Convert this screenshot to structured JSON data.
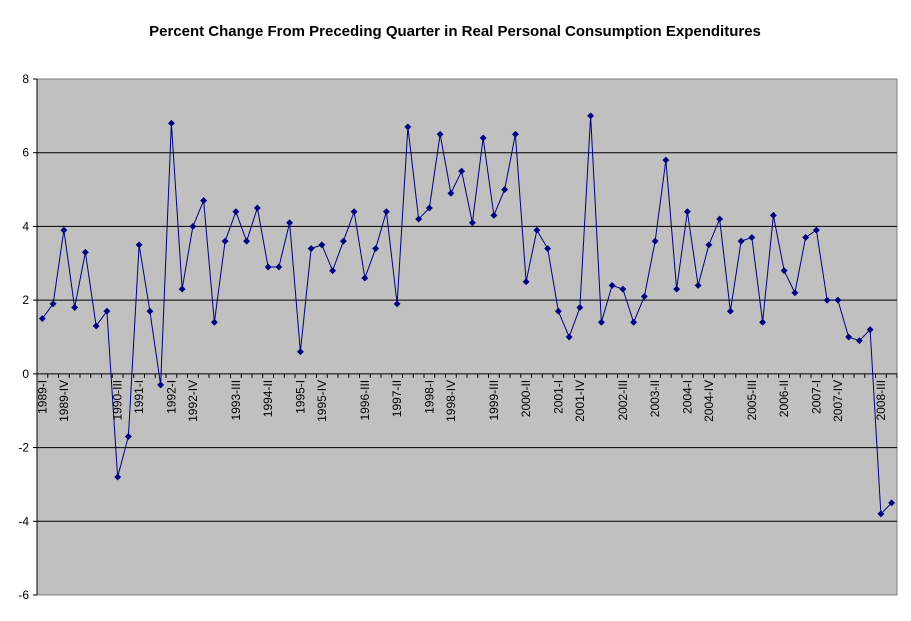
{
  "chart_data": {
    "type": "line",
    "title": "Percent Change From Preceding Quarter in Real Personal Consumption Expenditures",
    "xlabel": "",
    "ylabel": "",
    "ylim": [
      -6,
      8
    ],
    "yticks": [
      -6,
      -4,
      -2,
      0,
      2,
      4,
      6,
      8
    ],
    "grid": true,
    "legend": "none",
    "colors": {
      "line": "#000080",
      "marker": "#000080",
      "plot_bg": "#C0C0C0",
      "grid": "#000000"
    },
    "x_tick_labels": [
      {
        "index": 0,
        "label": "1989-I"
      },
      {
        "index": 2,
        "label": "1989-IV"
      },
      {
        "index": 7,
        "label": "1990-III"
      },
      {
        "index": 9,
        "label": "1991-I"
      },
      {
        "index": 12,
        "label": "1992-I"
      },
      {
        "index": 14,
        "label": "1992-IV"
      },
      {
        "index": 18,
        "label": "1993-III"
      },
      {
        "index": 21,
        "label": "1994-II"
      },
      {
        "index": 24,
        "label": "1995-I"
      },
      {
        "index": 26,
        "label": "1995-IV"
      },
      {
        "index": 30,
        "label": "1996-III"
      },
      {
        "index": 33,
        "label": "1997-II"
      },
      {
        "index": 36,
        "label": "1998-I"
      },
      {
        "index": 38,
        "label": "1998-IV"
      },
      {
        "index": 42,
        "label": "1999-III"
      },
      {
        "index": 45,
        "label": "2000-II"
      },
      {
        "index": 48,
        "label": "2001-I"
      },
      {
        "index": 50,
        "label": "2001-IV"
      },
      {
        "index": 54,
        "label": "2002-III"
      },
      {
        "index": 57,
        "label": "2003-II"
      },
      {
        "index": 60,
        "label": "2004-I"
      },
      {
        "index": 62,
        "label": "2004-IV"
      },
      {
        "index": 66,
        "label": "2005-III"
      },
      {
        "index": 69,
        "label": "2006-II"
      },
      {
        "index": 72,
        "label": "2007-I"
      },
      {
        "index": 74,
        "label": "2007-IV"
      },
      {
        "index": 78,
        "label": "2008-III"
      }
    ],
    "series": [
      {
        "name": "Percent Change",
        "values": [
          1.5,
          1.9,
          3.9,
          1.8,
          3.3,
          1.3,
          1.7,
          -2.8,
          -1.7,
          3.5,
          1.7,
          -0.3,
          6.8,
          2.3,
          4.0,
          4.7,
          1.4,
          3.6,
          4.4,
          3.6,
          4.5,
          2.9,
          2.9,
          4.1,
          0.6,
          3.4,
          3.5,
          2.8,
          3.6,
          4.4,
          2.6,
          3.4,
          4.4,
          1.9,
          6.7,
          4.2,
          4.5,
          6.5,
          4.9,
          5.5,
          4.1,
          6.4,
          4.3,
          5.0,
          6.5,
          2.5,
          3.9,
          3.4,
          1.7,
          1.0,
          1.8,
          7.0,
          1.4,
          2.4,
          2.3,
          1.4,
          2.1,
          3.6,
          5.8,
          2.3,
          4.4,
          2.4,
          3.5,
          4.2,
          1.7,
          3.6,
          3.7,
          1.4,
          4.3,
          2.8,
          2.2,
          3.7,
          3.9,
          2.0,
          2.0,
          1.0,
          0.9,
          1.2,
          -3.8,
          -3.5
        ]
      }
    ]
  }
}
